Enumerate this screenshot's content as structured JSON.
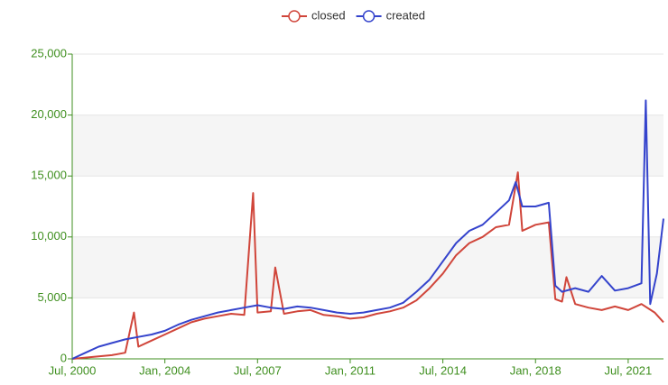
{
  "chart_data": {
    "type": "line",
    "xlim": [
      "2000-07",
      "2022-11"
    ],
    "xticks": [
      {
        "value": "2000-07",
        "label": "Jul, 2000"
      },
      {
        "value": "2004-01",
        "label": "Jan, 2004"
      },
      {
        "value": "2007-07",
        "label": "Jul, 2007"
      },
      {
        "value": "2011-01",
        "label": "Jan, 2011"
      },
      {
        "value": "2014-07",
        "label": "Jul, 2014"
      },
      {
        "value": "2018-01",
        "label": "Jan, 2018"
      },
      {
        "value": "2021-07",
        "label": "Jul, 2021"
      }
    ],
    "ylim": [
      0,
      25000
    ],
    "yticks": [
      0,
      {
        "value": 5000,
        "label": "5,000"
      },
      {
        "value": 10000,
        "label": "10,000"
      },
      {
        "value": 15000,
        "label": "15,000"
      },
      {
        "value": 20000,
        "label": "20,000"
      },
      {
        "value": 25000,
        "label": "25,000"
      }
    ],
    "grid": true,
    "legend": "top",
    "series": [
      {
        "name": "closed",
        "color": "#d0453a",
        "x": [
          "2000-07",
          "2001-01",
          "2001-07",
          "2002-01",
          "2002-07",
          "2002-11",
          "2003-01",
          "2003-07",
          "2004-01",
          "2004-07",
          "2005-01",
          "2005-07",
          "2006-01",
          "2006-07",
          "2007-01",
          "2007-05",
          "2007-07",
          "2008-01",
          "2008-03",
          "2008-07",
          "2009-01",
          "2009-07",
          "2010-01",
          "2010-07",
          "2011-01",
          "2011-07",
          "2012-01",
          "2012-07",
          "2013-01",
          "2013-07",
          "2014-01",
          "2014-07",
          "2015-01",
          "2015-07",
          "2016-01",
          "2016-07",
          "2017-01",
          "2017-05",
          "2017-07",
          "2018-01",
          "2018-07",
          "2018-10",
          "2019-01",
          "2019-03",
          "2019-07",
          "2020-01",
          "2020-07",
          "2021-01",
          "2021-07",
          "2022-01",
          "2022-07",
          "2022-11"
        ],
        "values": [
          0,
          100,
          200,
          300,
          500,
          3800,
          1000,
          1500,
          2000,
          2500,
          3000,
          3300,
          3500,
          3700,
          3600,
          13600,
          3800,
          3900,
          7500,
          3700,
          3900,
          4000,
          3600,
          3500,
          3300,
          3400,
          3700,
          3900,
          4200,
          4800,
          5800,
          7000,
          8500,
          9500,
          10000,
          10800,
          11000,
          15300,
          10500,
          11000,
          11200,
          4900,
          4700,
          6700,
          4500,
          4200,
          4000,
          4300,
          4000,
          4500,
          3800,
          3000
        ]
      },
      {
        "name": "created",
        "color": "#3443cc",
        "x": [
          "2000-07",
          "2001-01",
          "2001-07",
          "2002-01",
          "2002-07",
          "2003-01",
          "2003-07",
          "2004-01",
          "2004-07",
          "2005-01",
          "2005-07",
          "2006-01",
          "2006-07",
          "2007-01",
          "2007-07",
          "2008-01",
          "2008-07",
          "2009-01",
          "2009-07",
          "2010-01",
          "2010-07",
          "2011-01",
          "2011-07",
          "2012-01",
          "2012-07",
          "2013-01",
          "2013-07",
          "2014-01",
          "2014-07",
          "2015-01",
          "2015-07",
          "2016-01",
          "2016-07",
          "2017-01",
          "2017-04",
          "2017-07",
          "2018-01",
          "2018-07",
          "2018-10",
          "2019-01",
          "2019-07",
          "2020-01",
          "2020-07",
          "2021-01",
          "2021-07",
          "2022-01",
          "2022-03",
          "2022-05",
          "2022-08",
          "2022-11"
        ],
        "values": [
          0,
          500,
          1000,
          1300,
          1600,
          1800,
          2000,
          2300,
          2800,
          3200,
          3500,
          3800,
          4000,
          4200,
          4400,
          4200,
          4100,
          4300,
          4200,
          4000,
          3800,
          3700,
          3800,
          4000,
          4200,
          4600,
          5500,
          6500,
          8000,
          9500,
          10500,
          11000,
          12000,
          13000,
          14500,
          12500,
          12500,
          12800,
          6000,
          5500,
          5800,
          5500,
          6800,
          5600,
          5800,
          6200,
          21200,
          4500,
          7000,
          11500
        ]
      }
    ]
  }
}
